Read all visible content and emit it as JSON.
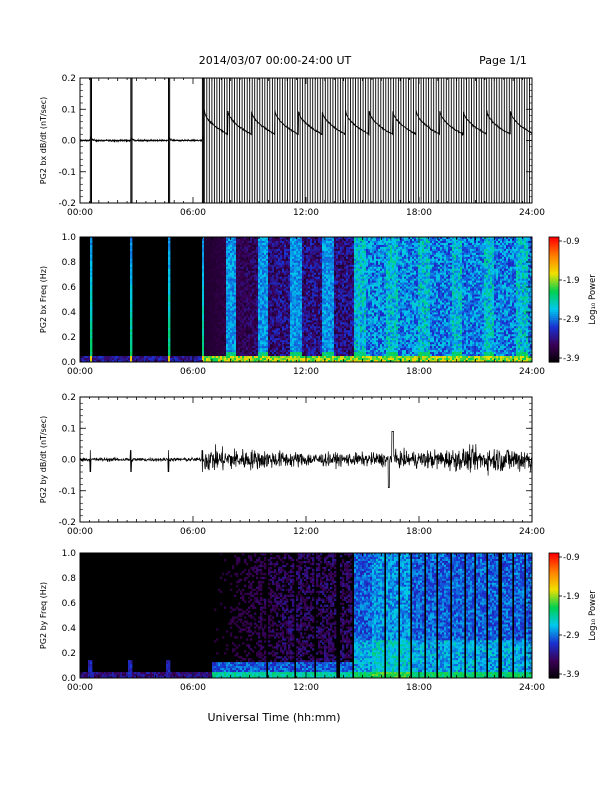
{
  "header": {
    "title": "2014/03/07  00:00-24:00 UT",
    "page": "Page 1/1"
  },
  "footer": {
    "xlabel": "Universal Time (hh:mm)"
  },
  "colors": {
    "background": "#ffffff",
    "trace": "#000000",
    "colormap": [
      "#000000",
      "#3a0055",
      "#1a2fd0",
      "#00c8f0",
      "#00d050",
      "#f0e000",
      "#ff8000",
      "#ff0000"
    ]
  },
  "chart_data": [
    {
      "type": "line",
      "id": "bx-dbdt",
      "ylabel": "PG2 bx dB/dt (nT/sec)",
      "xlim": [
        0,
        24
      ],
      "ylim": [
        -0.2,
        0.2
      ],
      "x_ticks": [
        "00:00",
        "06:00",
        "12:00",
        "18:00",
        "24:00"
      ],
      "y_ticks": [
        "0.2",
        "0.1",
        "0.0",
        "-0.1",
        "-0.2"
      ],
      "spike_hours": [
        0.55,
        2.7,
        4.7,
        6.5
      ],
      "dense_spikes_from_hour": 6.6,
      "dense_spike_count": 130,
      "baseline_before": 0.0,
      "sawtooth_range_after": [
        0.02,
        0.1
      ],
      "sawtooth_period_hours": 1.25
    },
    {
      "type": "heatmap",
      "id": "bx-spectrogram",
      "ylabel": "PG2 bx Freq (Hz)",
      "colorbar_label": "Log₁₀ Power",
      "xlim": [
        0,
        24
      ],
      "ylim": [
        0.0,
        1.0
      ],
      "x_ticks": [
        "00:00",
        "06:00",
        "12:00",
        "18:00",
        "24:00"
      ],
      "y_ticks": [
        "1.0",
        "0.8",
        "0.6",
        "0.4",
        "0.2",
        "0.0"
      ],
      "colorbar_ticks": [
        "-0.9",
        "-1.9",
        "-2.9",
        "-3.9"
      ],
      "clim": [
        -3.9,
        -0.9
      ],
      "bright_column_hours": [
        0.55,
        2.7,
        4.7,
        6.5
      ],
      "dense_activity_from_hour": 6.6,
      "broadband_from_hour": 14.5
    },
    {
      "type": "line",
      "id": "by-dbdt",
      "ylabel": "PG2 by dB/dt (nT/sec)",
      "xlim": [
        0,
        24
      ],
      "ylim": [
        -0.2,
        0.2
      ],
      "x_ticks": [
        "00:00",
        "06:00",
        "12:00",
        "18:00",
        "24:00"
      ],
      "y_ticks": [
        "0.2",
        "0.1",
        "0.0",
        "-0.1",
        "-0.2"
      ],
      "spike_hours": [
        0.55,
        2.7,
        4.7,
        6.5
      ],
      "noise_amplitude_before": 0.005,
      "noise_amplitude_after": 0.035,
      "peak_hour": 16.6,
      "peak_value": 0.09,
      "trough_value": -0.09
    },
    {
      "type": "heatmap",
      "id": "by-spectrogram",
      "ylabel": "PG2 by Freq (Hz)",
      "colorbar_label": "Log₁₀ Power",
      "xlim": [
        0,
        24
      ],
      "ylim": [
        0.0,
        1.0
      ],
      "x_ticks": [
        "00:00",
        "06:00",
        "12:00",
        "18:00",
        "24:00"
      ],
      "y_ticks": [
        "1.0",
        "0.8",
        "0.6",
        "0.4",
        "0.2",
        "0.0"
      ],
      "colorbar_ticks": [
        "-0.9",
        "-1.9",
        "-2.9",
        "-3.9"
      ],
      "clim": [
        -3.9,
        -0.9
      ],
      "dark_line_hours": [
        9.9,
        11.4,
        12.5,
        13.7,
        14.5,
        16.2,
        16.9,
        17.6,
        18.3,
        19.0,
        19.7,
        20.4,
        21.0,
        21.6,
        22.3,
        23.0,
        23.6
      ],
      "activity_from_hour": 7.0,
      "broadband_from_hour": 14.5
    }
  ]
}
